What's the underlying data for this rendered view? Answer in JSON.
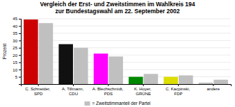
{
  "chart_data": {
    "type": "bar",
    "title": "Vergleich der Erst- und Zweitstimmen im Wahlkreis 194",
    "subtitle": "zur Bundestagswahl am 22. September 2002",
    "y_label": "Prozent",
    "categories": [
      "C. Schneider, SPD",
      "A. Tillmann, CDU",
      "A. Blechschmidt, PDS",
      "K. Hoyer, GRÜNE",
      "C. Kacpinski, FDP",
      "andere"
    ],
    "series": [
      {
        "values": [
          44.5,
          27.5,
          21.0,
          5.0,
          5.0,
          1.0
        ],
        "colors": [
          "#cc0000",
          "#111111",
          "#ff00ff",
          "#008800",
          "#dddd00",
          "#c0c0c0"
        ]
      },
      {
        "name": "= Zweitstimmanteil der Partei",
        "color": "#c0c0c0",
        "values": [
          42.0,
          25.0,
          19.0,
          7.0,
          6.0,
          3.0
        ]
      }
    ],
    "ylim": [
      0,
      45
    ],
    "yticks": [
      5,
      10,
      15,
      20,
      25,
      30,
      35,
      40,
      45
    ],
    "grid": true,
    "legend": "bottom"
  }
}
